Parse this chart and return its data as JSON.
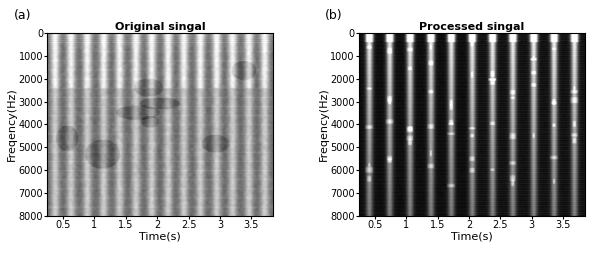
{
  "title_a": "Original singal",
  "title_b": "Processed singal",
  "label_a": "(a)",
  "label_b": "(b)",
  "xlabel": "Time(s)",
  "ylabel": "Freqency(Hz)",
  "xlim": [
    0.25,
    3.85
  ],
  "ylim": [
    0,
    8000
  ],
  "xticks": [
    0.5,
    1.0,
    1.5,
    2.0,
    2.5,
    3.0,
    3.5
  ],
  "yticks": [
    0,
    1000,
    2000,
    3000,
    4000,
    5000,
    6000,
    7000,
    8000
  ],
  "background_color": "#ffffff",
  "title_fontsize": 8,
  "label_fontsize": 9,
  "tick_fontsize": 7,
  "axis_label_fontsize": 8,
  "n_stripes_orig": 14,
  "n_stripes_proc": 11,
  "n_time": 400,
  "n_freq": 300
}
